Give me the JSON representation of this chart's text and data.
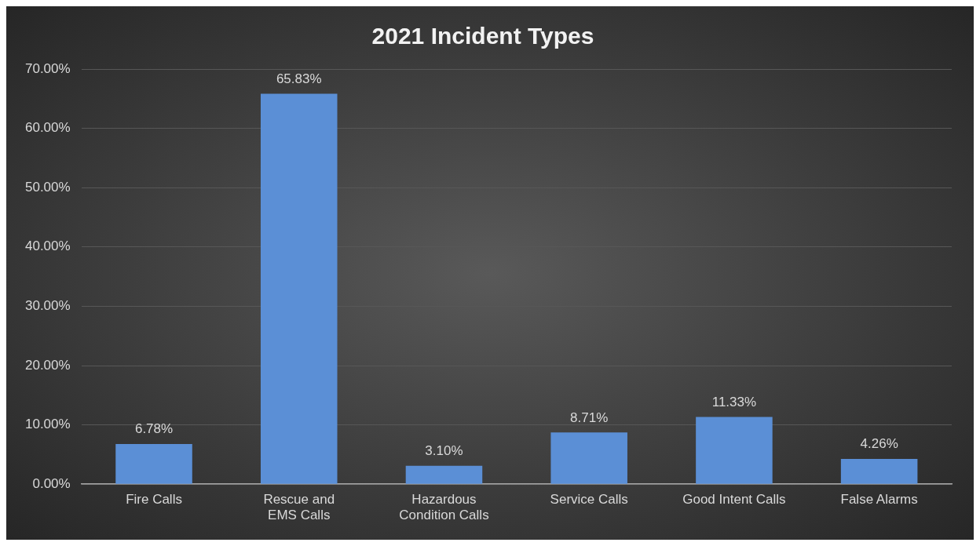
{
  "chart_data": {
    "type": "bar",
    "title": "2021 Incident Types",
    "categories": [
      "Fire Calls",
      "Rescue and EMS Calls",
      "Hazardous Condition Calls",
      "Service Calls",
      "Good Intent Calls",
      "False Alarms"
    ],
    "values": [
      6.78,
      65.83,
      3.1,
      8.71,
      11.33,
      4.26
    ],
    "value_labels": [
      "6.78%",
      "65.83%",
      "3.10%",
      "8.71%",
      "11.33%",
      "4.26%"
    ],
    "color": "#5b8fd6",
    "ylim": [
      0,
      70
    ],
    "yticks": [
      {
        "value": 0,
        "label": "0.00%"
      },
      {
        "value": 10,
        "label": "10.00%"
      },
      {
        "value": 20,
        "label": "20.00%"
      },
      {
        "value": 30,
        "label": "30.00%"
      },
      {
        "value": 40,
        "label": "40.00%"
      },
      {
        "value": 50,
        "label": "50.00%"
      },
      {
        "value": 60,
        "label": "60.00%"
      },
      {
        "value": 70,
        "label": "70.00%"
      }
    ],
    "grid": "y",
    "legend": false
  }
}
